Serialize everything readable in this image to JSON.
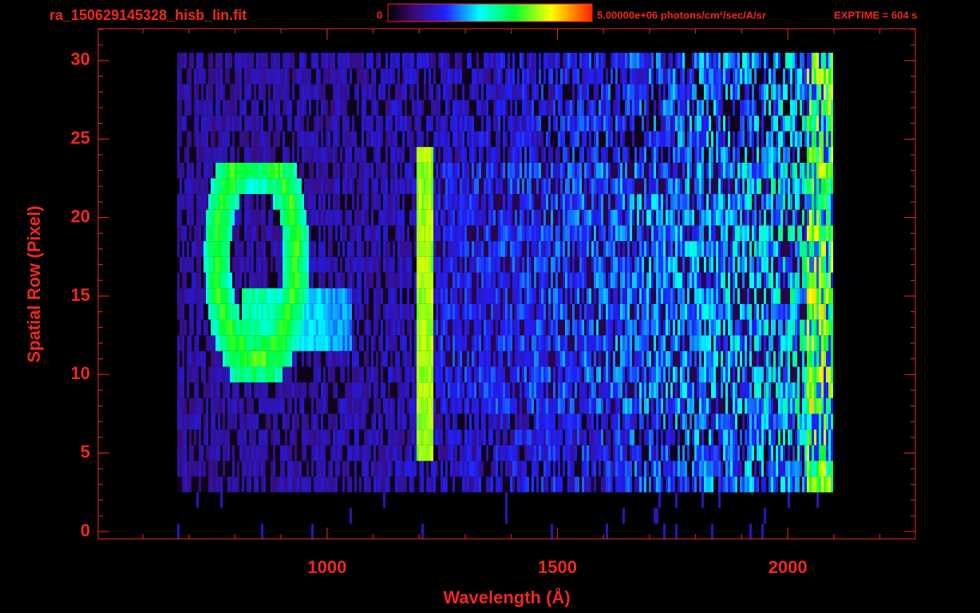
{
  "chart_data": {
    "type": "image",
    "title": "ra_150629145328_hisb_lin.fit",
    "colorbar_min": "0",
    "colorbar_label": "5.00000e+06 photons/cm²/sec/A/sr",
    "exptime": "EXPTIME = 604 s",
    "xlabel": "Wavelength (Å)",
    "ylabel": "Spatial Row (Pixel)",
    "xlim": [
      503,
      2277
    ],
    "xticks": [
      1000,
      1500,
      2000
    ],
    "ylim": [
      -0.46,
      32.03
    ],
    "yticks": [
      0,
      5,
      10,
      15,
      20,
      25,
      30
    ],
    "color": "#f0281c"
  }
}
